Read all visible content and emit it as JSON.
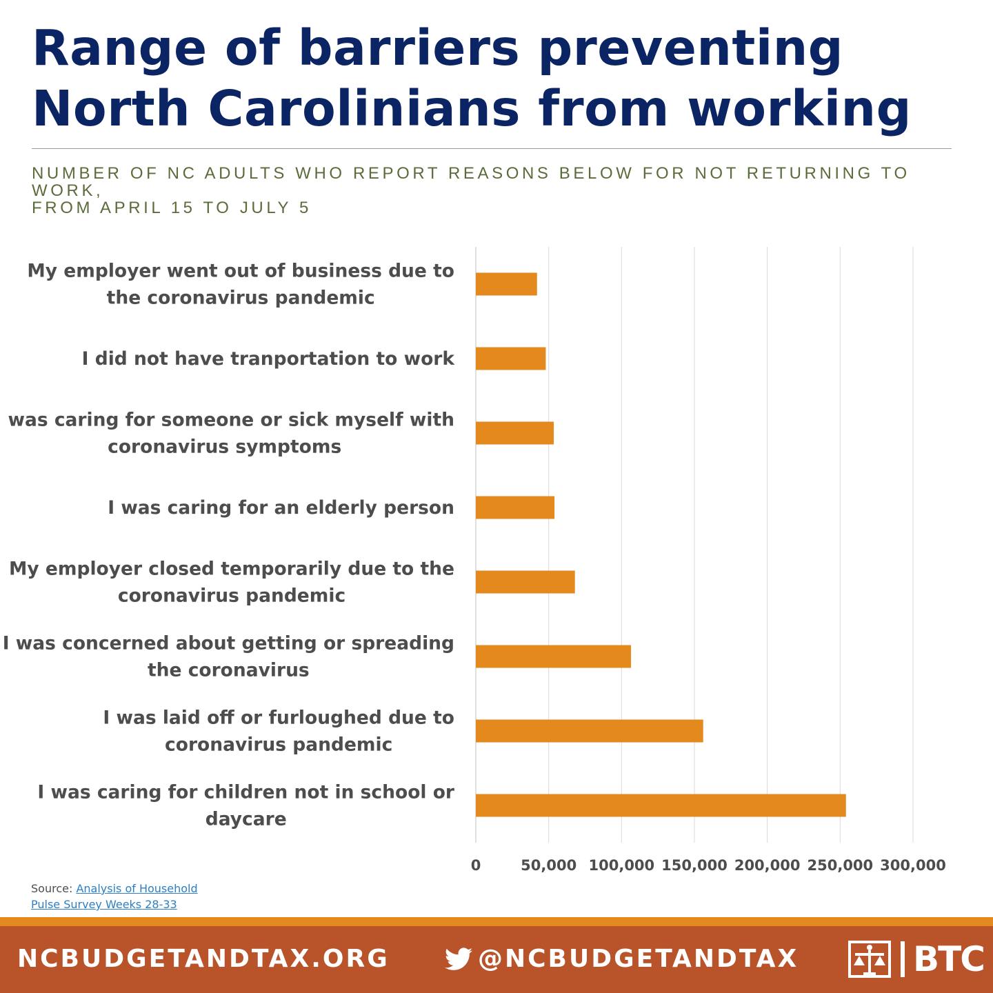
{
  "header": {
    "title": "Range of barriers preventing North Carolinians from working",
    "subtitle_line1": "NUMBER OF NC ADULTS WHO REPORT REASONS BELOW FOR NOT RETURNING TO WORK,",
    "subtitle_line2": "FROM APRIL 15 TO JULY 5"
  },
  "chart_data": {
    "type": "bar",
    "orientation": "horizontal",
    "title": "Range of barriers preventing North Carolinians from working",
    "subtitle": "NUMBER OF NC ADULTS WHO REPORT REASONS BELOW FOR NOT RETURNING TO WORK, FROM APRIL 15 TO JULY 5",
    "xlabel": "",
    "ylabel": "",
    "categories": [
      [
        "My employer went out of business due to",
        "the coronavirus pandemic"
      ],
      [
        "I did not have tranportation to work"
      ],
      [
        "I was caring for someone or sick myself with",
        "coronavirus symptoms"
      ],
      [
        "I was caring for an elderly person"
      ],
      [
        "My employer closed temporarily due to the",
        "coronavirus pandemic"
      ],
      [
        "I was concerned about getting or spreading",
        "the coronavirus"
      ],
      [
        "I was laid off or furloughed due to",
        "coronavirus pandemic"
      ],
      [
        "I was caring for children not in school or",
        "daycare"
      ]
    ],
    "values": [
      42000,
      48000,
      53500,
      54000,
      68000,
      106500,
      156000,
      254000
    ],
    "xlim": [
      0,
      300000
    ],
    "ticks": [
      0,
      50000,
      100000,
      150000,
      200000,
      250000,
      300000
    ],
    "tick_labels": [
      "0",
      "50,000",
      "100,000",
      "150,000",
      "200,000",
      "250,000",
      "300,000"
    ],
    "grid": "vertical",
    "bar_color": "#e3891e",
    "legend": "none"
  },
  "source": {
    "prefix": "Source: ",
    "link_line1": "Analysis of Household",
    "link_line2": "Pulse Survey Weeks 28-33"
  },
  "footer": {
    "website": "NCBUDGETANDTAX.ORG",
    "twitter": "@NCBUDGETANDTAX",
    "logo_text": "BTC",
    "accent_color": "#e3891e",
    "background_color": "#b9532a"
  }
}
